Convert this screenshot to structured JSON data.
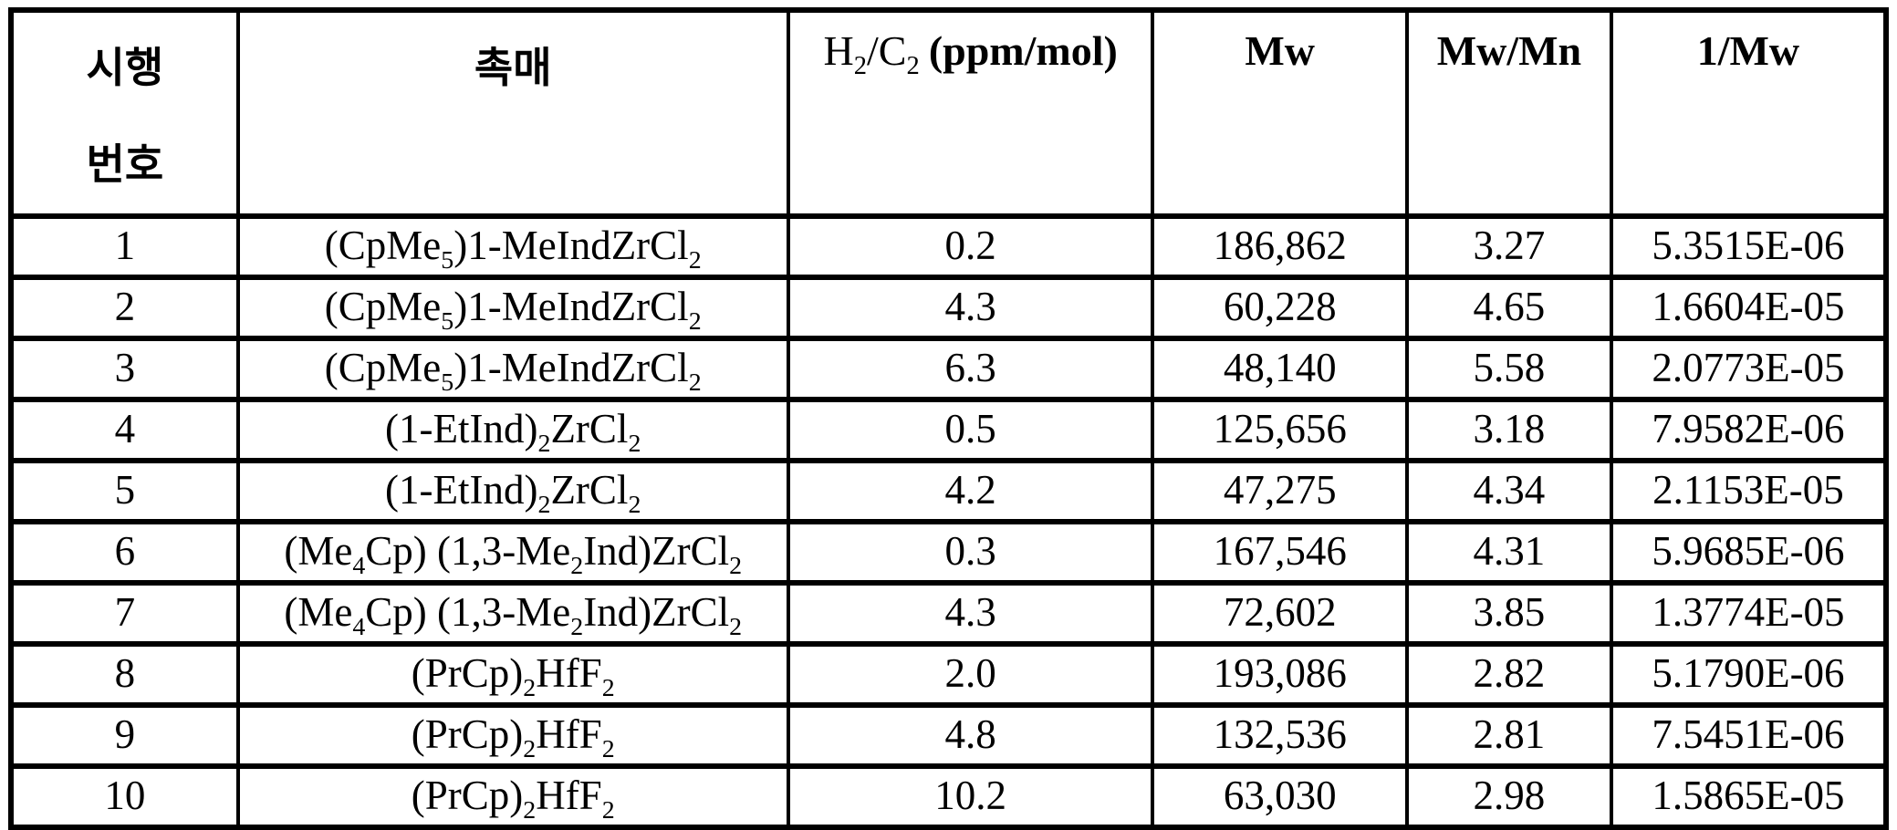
{
  "table": {
    "headers": {
      "run_number": "시행\n번호",
      "catalyst": "촉매",
      "h2c2_formula": "H~2~/C~2~",
      "h2c2_unit": "(ppm/mol)",
      "mw": "Mw",
      "mw_mn": "Mw/Mn",
      "inv_mw": "1/Mw"
    },
    "rows": [
      {
        "run": "1",
        "catalyst": "(CpMe~5~)1-MeIndZrCl~2~",
        "h2c2": "0.2",
        "mw": "186,862",
        "mw_mn": "3.27",
        "inv_mw": "5.3515E-06"
      },
      {
        "run": "2",
        "catalyst": "(CpMe~5~)1-MeIndZrCl~2~",
        "h2c2": "4.3",
        "mw": "60,228",
        "mw_mn": "4.65",
        "inv_mw": "1.6604E-05"
      },
      {
        "run": "3",
        "catalyst": "(CpMe~5~)1-MeIndZrCl~2~",
        "h2c2": "6.3",
        "mw": "48,140",
        "mw_mn": "5.58",
        "inv_mw": "2.0773E-05"
      },
      {
        "run": "4",
        "catalyst": "(1-EtInd)~2~ZrCl~2~",
        "h2c2": "0.5",
        "mw": "125,656",
        "mw_mn": "3.18",
        "inv_mw": "7.9582E-06"
      },
      {
        "run": "5",
        "catalyst": "(1-EtInd)~2~ZrCl~2~",
        "h2c2": "4.2",
        "mw": "47,275",
        "mw_mn": "4.34",
        "inv_mw": "2.1153E-05"
      },
      {
        "run": "6",
        "catalyst": "(Me~4~Cp) (1,3-Me~2~Ind)ZrCl~2~",
        "h2c2": "0.3",
        "mw": "167,546",
        "mw_mn": "4.31",
        "inv_mw": "5.9685E-06"
      },
      {
        "run": "7",
        "catalyst": "(Me~4~Cp) (1,3-Me~2~Ind)ZrCl~2~",
        "h2c2": "4.3",
        "mw": "72,602",
        "mw_mn": "3.85",
        "inv_mw": "1.3774E-05"
      },
      {
        "run": "8",
        "catalyst": "(PrCp)~2~HfF~2~",
        "h2c2": "2.0",
        "mw": "193,086",
        "mw_mn": "2.82",
        "inv_mw": "5.1790E-06"
      },
      {
        "run": "9",
        "catalyst": "(PrCp)~2~HfF~2~",
        "h2c2": "4.8",
        "mw": "132,536",
        "mw_mn": "2.81",
        "inv_mw": "7.5451E-06"
      },
      {
        "run": "10",
        "catalyst": "(PrCp)~2~HfF~2~",
        "h2c2": "10.2",
        "mw": "63,030",
        "mw_mn": "2.98",
        "inv_mw": "1.5865E-05"
      }
    ],
    "colors": {
      "border": "#000000",
      "background": "#ffffff",
      "text": "#000000"
    }
  }
}
